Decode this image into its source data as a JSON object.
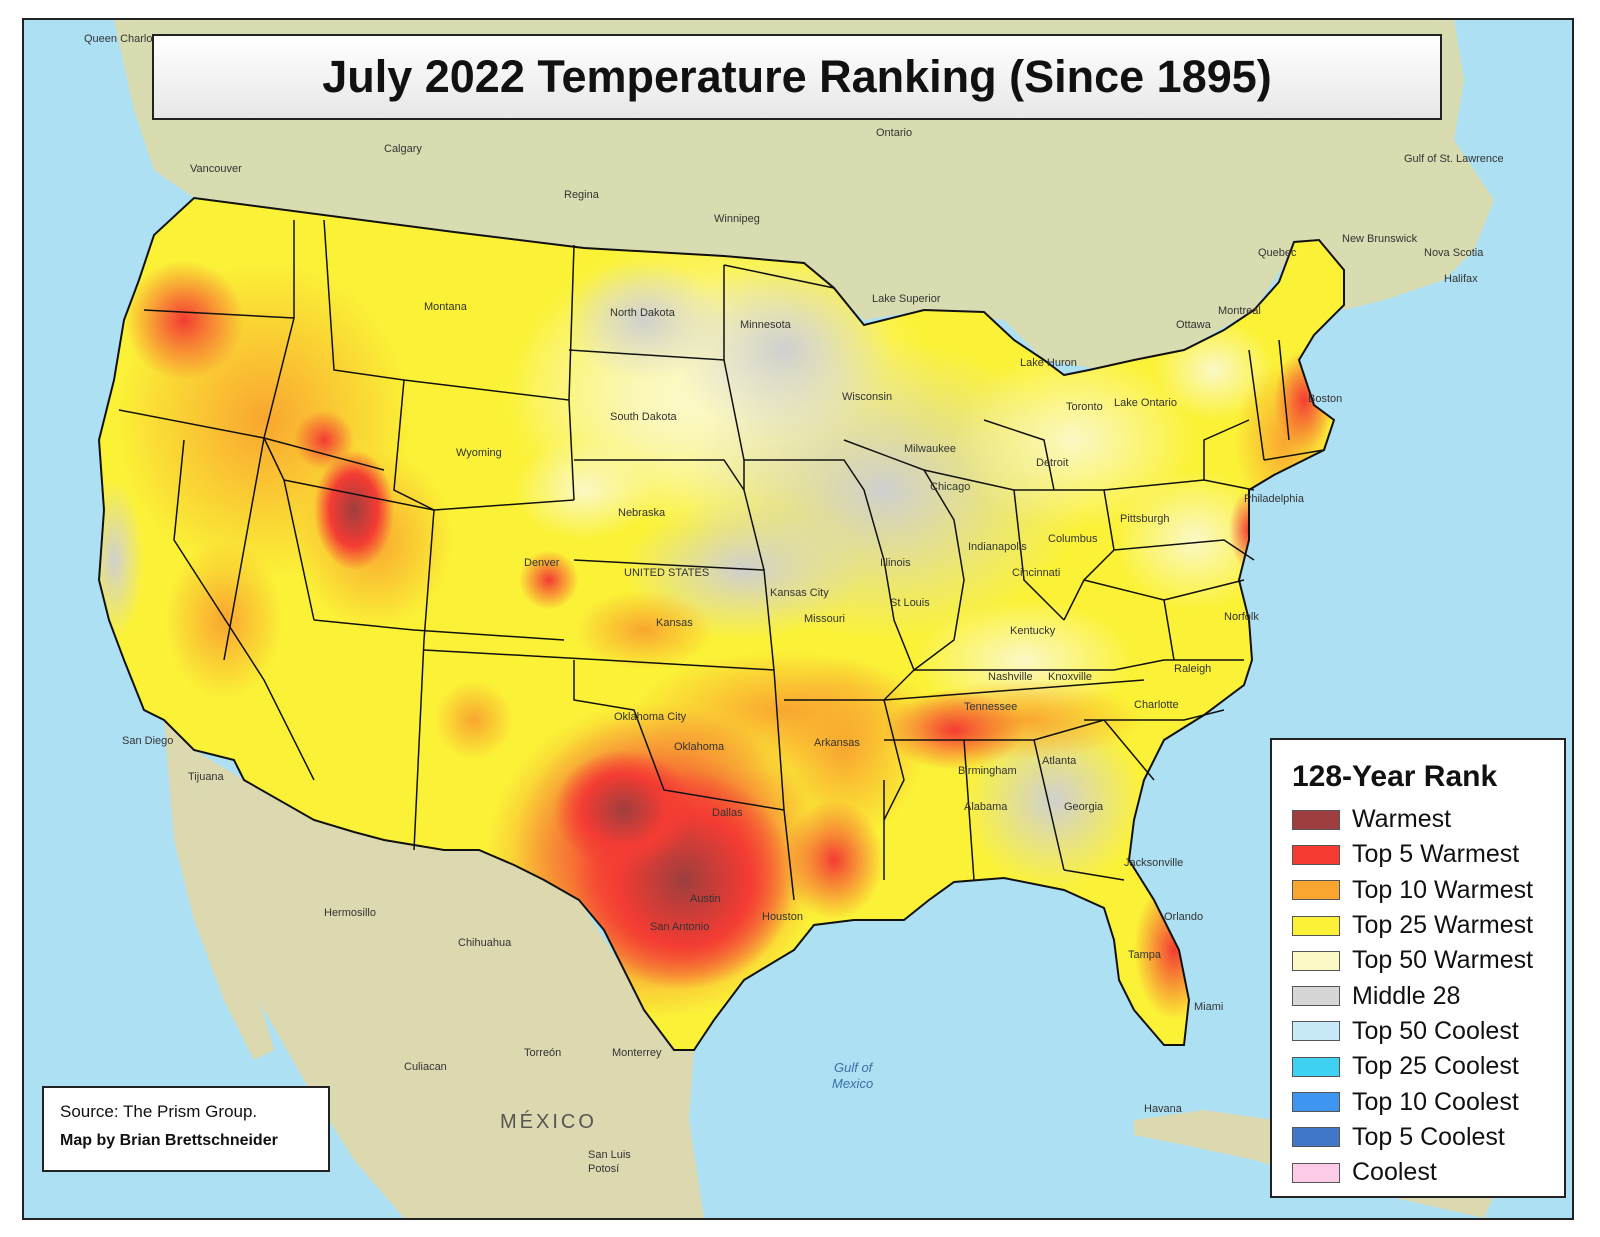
{
  "title": "July 2022 Temperature Ranking (Since 1895)",
  "legend": {
    "title": "128-Year Rank",
    "items": [
      {
        "label": "Warmest",
        "color": "#9e3e3e"
      },
      {
        "label": "Top 5 Warmest",
        "color": "#f43c33"
      },
      {
        "label": "Top 10 Warmest",
        "color": "#f9a630"
      },
      {
        "label": "Top 25 Warmest",
        "color": "#fbf237"
      },
      {
        "label": "Top 50 Warmest",
        "color": "#fbf8c6"
      },
      {
        "label": "Middle 28",
        "color": "#d6d6d6"
      },
      {
        "label": "Top 50 Coolest",
        "color": "#c8e9f7"
      },
      {
        "label": "Top 25 Coolest",
        "color": "#3fd1f2"
      },
      {
        "label": "Top 10 Coolest",
        "color": "#3f96f0"
      },
      {
        "label": "Top 5 Coolest",
        "color": "#3f78c9"
      },
      {
        "label": "Coolest",
        "color": "#fbcbe8"
      }
    ]
  },
  "source": "Source: The Prism Group.",
  "credit": "Map by Brian Brettschneider",
  "places": {
    "calgary": "Calgary",
    "regina": "Regina",
    "winnipeg": "Winnipeg",
    "vancouver": "Vancouver",
    "ontario": "Ontario",
    "lake_superior": "Lake Superior",
    "ottawa": "Ottawa",
    "montreal": "Montreal",
    "quebec": "Quebec",
    "halifax": "Halifax",
    "new_brunswick": "New Brunswick",
    "nova_scotia": "Nova Scotia",
    "gulf_st_lawrence": "Gulf of St. Lawrence",
    "toronto": "Toronto",
    "lake_huron": "Lake Huron",
    "lake_ontario": "Lake Ontario",
    "detroit": "Detroit",
    "chicago": "Chicago",
    "milwaukee": "Milwaukee",
    "kansas_city": "Kansas City",
    "st_louis": "St Louis",
    "united_states": "UNITED STATES",
    "oklahoma_city": "Oklahoma City",
    "dallas": "Dallas",
    "austin": "Austin",
    "san_antonio": "San Antonio",
    "houston": "Houston",
    "san_diego": "San Diego",
    "tijuana": "Tijuana",
    "hermosillo": "Hermosillo",
    "chihuahua": "Chihuahua",
    "culiacan": "Culiacan",
    "torreon": "Torreón",
    "monterrey": "Monterrey",
    "mexico": "MÉXICO",
    "san_luis_potosi_1": "San Luis",
    "san_luis_potosi_2": "Potosí",
    "gulf_of_mexico_1": "Gulf of",
    "gulf_of_mexico_2": "Mexico",
    "havana": "Havana",
    "miami": "Miami",
    "jacksonville": "Jacksonville",
    "atlanta": "Atlanta",
    "charlotte": "Charlotte",
    "raleigh": "Raleigh",
    "pittsburgh": "Pittsburgh",
    "boston": "Boston",
    "philadelphia": "Philadelphia",
    "nashville": "Nashville",
    "knoxville": "Knoxville",
    "birmingham": "Birmingham",
    "tampa": "Tampa",
    "orlando": "Orlando",
    "cincinnati": "Cincinnati",
    "indianapolis": "Indianapolis",
    "columbus": "Columbus",
    "norfolk": "Norfolk",
    "denver": "Denver",
    "kansas": "Kansas",
    "nebraska": "Nebraska",
    "south_dakota": "South Dakota",
    "north_dakota": "North Dakota",
    "minnesota": "Minnesota",
    "wisconsin": "Wisconsin",
    "oklahoma": "Oklahoma",
    "arkansas": "Arkansas",
    "missouri": "Missouri",
    "illinois": "Illinois",
    "montana": "Montana",
    "wyoming": "Wyoming",
    "kentucky": "Kentucky",
    "tennessee": "Tennessee",
    "georgia": "Georgia",
    "alabama": "Alabama",
    "queen_charlotte": "Queen Charlotte Sound"
  }
}
